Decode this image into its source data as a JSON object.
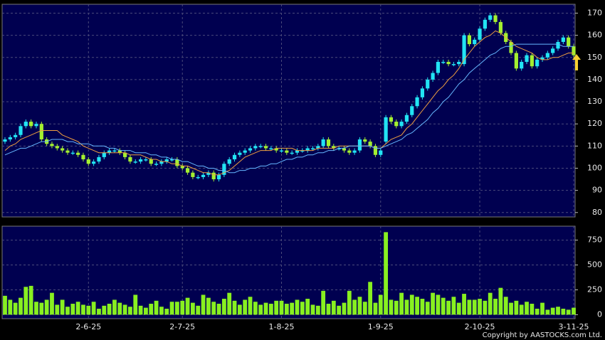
{
  "source": "Copyright by AASTOCKS.com Ltd.",
  "chart_data": [
    {
      "type": "candlestick",
      "categories": [
        null,
        null,
        null,
        null,
        null,
        null,
        null,
        null,
        null,
        null,
        null,
        null,
        null,
        null,
        null,
        null,
        "2-6-25",
        null,
        null,
        null,
        null,
        null,
        null,
        null,
        null,
        null,
        null,
        null,
        null,
        null,
        null,
        null,
        null,
        null,
        "2-7-25",
        null,
        null,
        null,
        null,
        null,
        null,
        null,
        null,
        null,
        null,
        null,
        null,
        null,
        null,
        null,
        null,
        null,
        null,
        "1-8-25",
        null,
        null,
        null,
        null,
        null,
        null,
        null,
        null,
        null,
        null,
        null,
        null,
        null,
        null,
        null,
        null,
        null,
        null,
        "1-9-25",
        null,
        null,
        null,
        null,
        null,
        null,
        null,
        null,
        null,
        null,
        null,
        null,
        null,
        null,
        null,
        null,
        null,
        null,
        "2-10-25",
        null,
        null,
        null,
        null,
        null,
        null,
        null,
        null,
        null,
        null,
        null,
        null,
        null,
        null,
        null,
        null,
        null,
        "3-11-25"
      ],
      "open": [
        112,
        113,
        114,
        115,
        119,
        121,
        119,
        120,
        113,
        111,
        110,
        109,
        108,
        107,
        107,
        106,
        104,
        102,
        103,
        105,
        107,
        108,
        108,
        107,
        105,
        103,
        103,
        104,
        104,
        102,
        102,
        103,
        104,
        104,
        101,
        100,
        98,
        96,
        96,
        97,
        98,
        95,
        97,
        102,
        104,
        106,
        107,
        108,
        109,
        110,
        110,
        109,
        109,
        108,
        108,
        107,
        107,
        108,
        108,
        109,
        109,
        110,
        113,
        110,
        109,
        109,
        108,
        107,
        108,
        113,
        112,
        110,
        106,
        112,
        123,
        121,
        119,
        121,
        124,
        128,
        132,
        136,
        140,
        143,
        148,
        148,
        147,
        147,
        147,
        160,
        156,
        158,
        163,
        167,
        169,
        166,
        161,
        157,
        152,
        145,
        148,
        151,
        146,
        149,
        150,
        152,
        154,
        157,
        159,
        155
      ],
      "high": [
        114,
        115,
        116,
        120,
        122,
        122,
        121,
        121,
        114,
        112,
        111,
        110,
        109,
        108,
        108,
        107,
        105,
        104,
        106,
        108,
        109,
        109,
        109,
        108,
        106,
        104,
        105,
        105,
        105,
        103,
        104,
        105,
        105,
        105,
        102,
        101,
        99,
        97,
        98,
        99,
        99,
        98,
        103,
        105,
        107,
        108,
        109,
        110,
        111,
        111,
        111,
        110,
        110,
        109,
        109,
        108,
        109,
        109,
        110,
        110,
        111,
        114,
        114,
        111,
        110,
        110,
        109,
        109,
        114,
        114,
        113,
        111,
        109,
        124,
        124,
        122,
        122,
        125,
        129,
        133,
        137,
        141,
        144,
        149,
        149,
        149,
        148,
        149,
        161,
        161,
        159,
        164,
        168,
        170,
        170,
        167,
        162,
        158,
        153,
        149,
        152,
        152,
        150,
        151,
        153,
        155,
        158,
        160,
        160,
        156
      ],
      "low": [
        111,
        112,
        113,
        114,
        118,
        118,
        118,
        112,
        110,
        109,
        108,
        107,
        106,
        106,
        105,
        103,
        101,
        101,
        102,
        104,
        106,
        107,
        106,
        104,
        102,
        102,
        102,
        103,
        101,
        101,
        101,
        102,
        103,
        100,
        99,
        97,
        95,
        95,
        95,
        96,
        94,
        94,
        96,
        101,
        103,
        105,
        106,
        107,
        108,
        109,
        108,
        108,
        107,
        107,
        106,
        106,
        106,
        107,
        107,
        108,
        108,
        109,
        109,
        108,
        108,
        107,
        106,
        106,
        107,
        111,
        109,
        105,
        105,
        111,
        120,
        118,
        118,
        120,
        123,
        127,
        131,
        135,
        139,
        142,
        147,
        146,
        146,
        146,
        146,
        155,
        155,
        157,
        162,
        166,
        165,
        160,
        156,
        151,
        144,
        144,
        147,
        145,
        145,
        148,
        149,
        151,
        153,
        156,
        154,
        150
      ],
      "close": [
        113,
        114,
        115,
        119,
        121,
        119,
        120,
        113,
        111,
        110,
        109,
        108,
        107,
        107,
        106,
        104,
        102,
        103,
        105,
        107,
        108,
        108,
        107,
        105,
        103,
        103,
        104,
        104,
        102,
        102,
        103,
        104,
        104,
        101,
        100,
        98,
        96,
        96,
        97,
        98,
        95,
        97,
        102,
        104,
        106,
        107,
        108,
        109,
        110,
        110,
        109,
        109,
        108,
        108,
        107,
        107,
        108,
        108,
        109,
        109,
        110,
        113,
        110,
        109,
        109,
        108,
        107,
        108,
        113,
        112,
        110,
        106,
        108,
        123,
        121,
        119,
        121,
        124,
        128,
        132,
        136,
        140,
        143,
        148,
        148,
        147,
        147,
        148,
        160,
        156,
        158,
        163,
        167,
        169,
        166,
        161,
        157,
        152,
        145,
        148,
        151,
        146,
        149,
        150,
        152,
        154,
        157,
        159,
        155,
        151
      ],
      "up_color": "#22e4f4",
      "down_color": "#a4f030",
      "series": [
        {
          "color": "#f0a040",
          "values": [
            108,
            110,
            111,
            113,
            114,
            115,
            116,
            117,
            117,
            117,
            117,
            115,
            114,
            113,
            112,
            110,
            109,
            108,
            107,
            107,
            107,
            107,
            107,
            107,
            106,
            106,
            106,
            105,
            104,
            104,
            103,
            103,
            102,
            102,
            101,
            101,
            100,
            99,
            98,
            98,
            97,
            97,
            98,
            99,
            101,
            103,
            105,
            106,
            107,
            108,
            108,
            108,
            109,
            109,
            109,
            109,
            108,
            108,
            108,
            108,
            109,
            109,
            109,
            109,
            110,
            110,
            110,
            110,
            110,
            110,
            110,
            109,
            109,
            111,
            113,
            114,
            115,
            118,
            120,
            123,
            126,
            129,
            132,
            135,
            137,
            140,
            142,
            145,
            149,
            152,
            155,
            157,
            159,
            160,
            162,
            161,
            159,
            157,
            155,
            154,
            153,
            152,
            150,
            149,
            149,
            150,
            150,
            151,
            152,
            152
          ]
        },
        {
          "color": "#66b8ff",
          "values": [
            106,
            107,
            108,
            109,
            109,
            110,
            111,
            112,
            112,
            113,
            113,
            113,
            112,
            112,
            111,
            111,
            111,
            110,
            110,
            110,
            109,
            109,
            108,
            108,
            108,
            107,
            107,
            107,
            106,
            106,
            105,
            105,
            104,
            104,
            103,
            103,
            102,
            101,
            101,
            100,
            100,
            99,
            99,
            98,
            98,
            99,
            99,
            100,
            100,
            101,
            101,
            102,
            102,
            103,
            104,
            104,
            105,
            105,
            106,
            106,
            107,
            107,
            108,
            108,
            109,
            109,
            110,
            110,
            110,
            110,
            110,
            109,
            109,
            110,
            111,
            112,
            113,
            115,
            116,
            118,
            120,
            122,
            125,
            127,
            130,
            132,
            135,
            138,
            140,
            143,
            145,
            147,
            149,
            151,
            152,
            154,
            155,
            155,
            156,
            156,
            156,
            156,
            156,
            156,
            156,
            156,
            156,
            155,
            155,
            155
          ]
        }
      ],
      "ylim": [
        78,
        174
      ],
      "yticks": [
        80,
        90,
        100,
        110,
        120,
        130,
        140,
        150,
        160,
        170
      ],
      "grid": true
    },
    {
      "type": "bar",
      "values": [
        190,
        150,
        120,
        170,
        280,
        290,
        130,
        120,
        150,
        220,
        100,
        150,
        80,
        110,
        130,
        100,
        90,
        130,
        60,
        90,
        110,
        150,
        120,
        100,
        80,
        200,
        90,
        70,
        110,
        140,
        80,
        60,
        130,
        130,
        140,
        170,
        120,
        90,
        200,
        170,
        130,
        110,
        160,
        220,
        140,
        100,
        150,
        180,
        130,
        100,
        120,
        110,
        140,
        140,
        110,
        120,
        150,
        130,
        160,
        100,
        90,
        240,
        110,
        140,
        90,
        120,
        240,
        150,
        180,
        130,
        330,
        120,
        200,
        830,
        150,
        140,
        220,
        150,
        200,
        180,
        160,
        130,
        220,
        200,
        170,
        140,
        180,
        120,
        210,
        150,
        150,
        160,
        140,
        220,
        160,
        270,
        180,
        120,
        140,
        100,
        130,
        110,
        60,
        120,
        50,
        70,
        80,
        60,
        50,
        70
      ],
      "color": "#88f020",
      "ylim": [
        -40,
        890
      ],
      "yticks": [
        0,
        250,
        500,
        750
      ],
      "grid": true
    }
  ]
}
